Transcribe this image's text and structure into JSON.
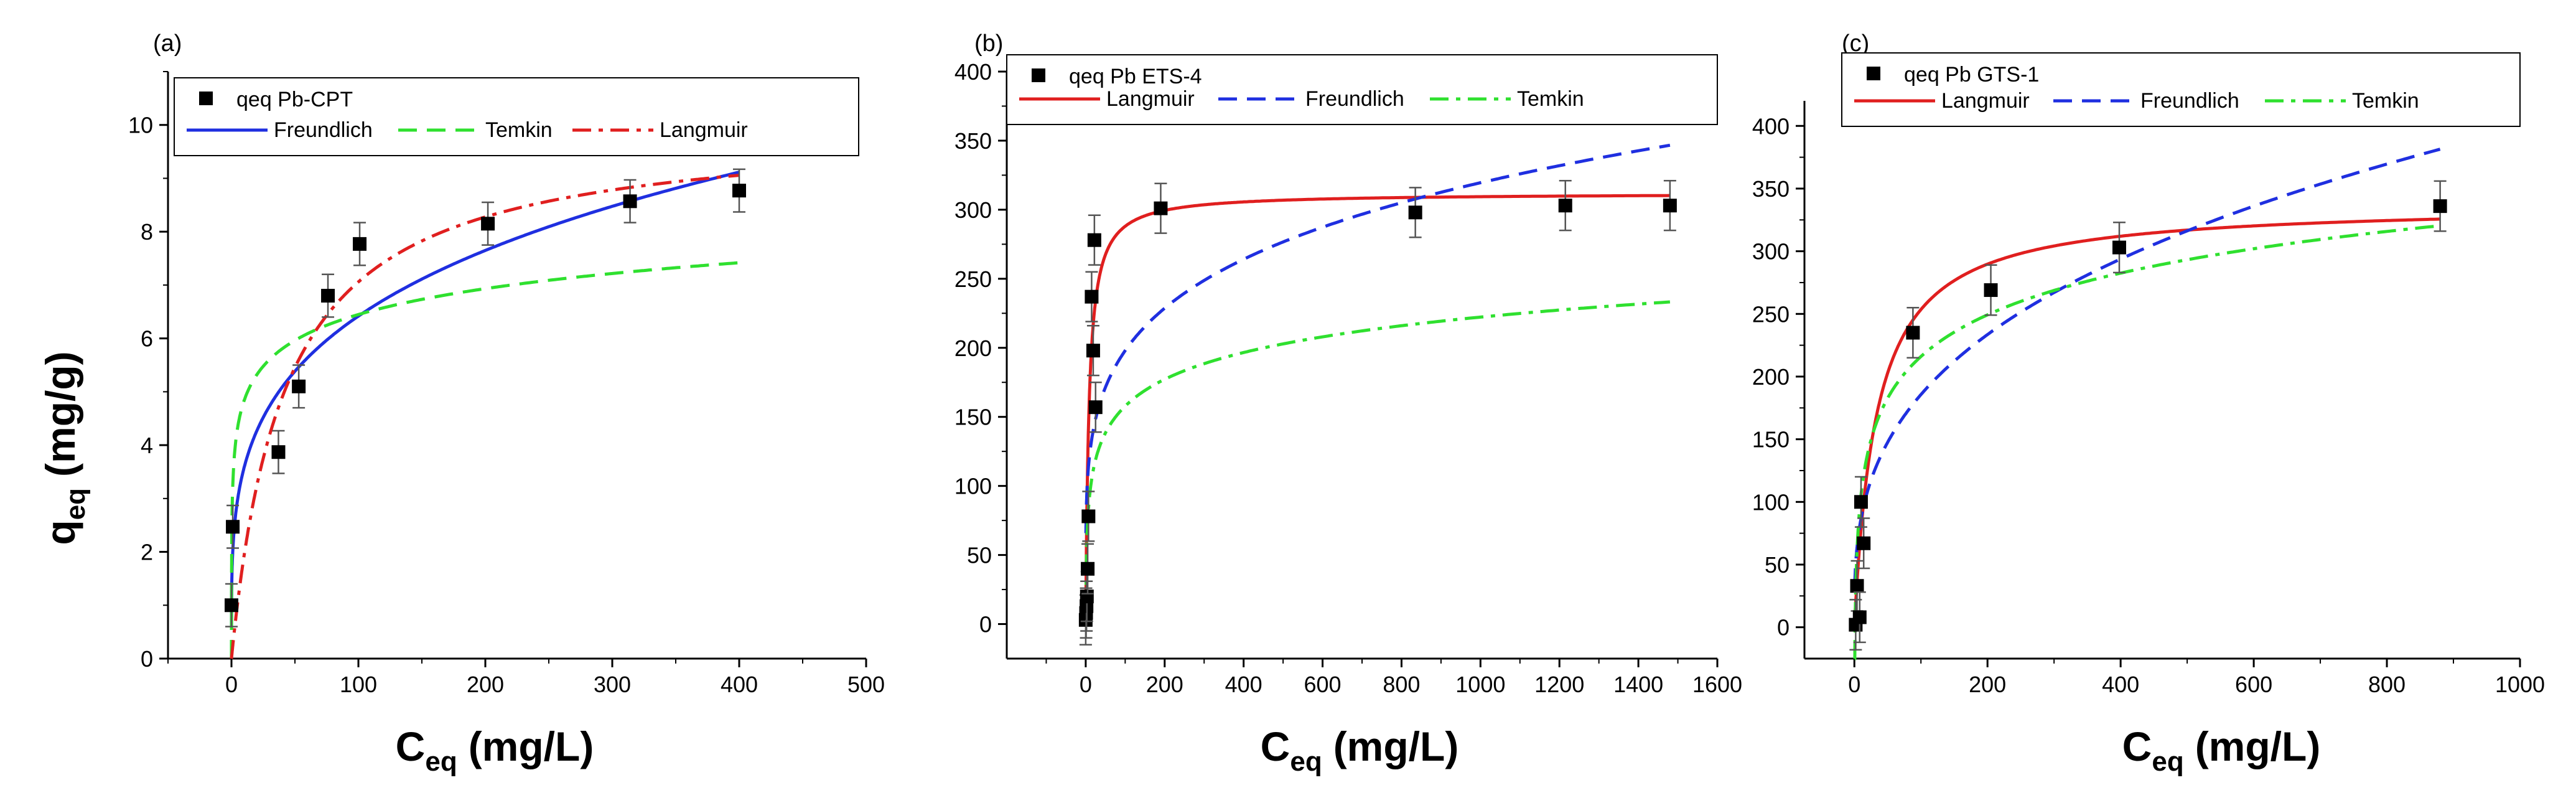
{
  "figure": {
    "shared_x_title": "C",
    "shared_x_sub": "eq",
    "shared_x_unit": "(mg/L)",
    "y_title": "q",
    "y_sub": "eq",
    "y_unit": "(mg/g)"
  },
  "colors": {
    "points": "#000000",
    "freundlich": "#1f2fe0",
    "temkin": "#2fe02f",
    "langmuir": "#e01f1f",
    "errorbar": "#555555"
  },
  "chart_data": [
    {
      "id": "a",
      "panel_label": "(a)",
      "type": "scatter",
      "xlim": [
        -50,
        500
      ],
      "ylim": [
        0,
        11
      ],
      "xticks": [
        0,
        100,
        200,
        300,
        400,
        500
      ],
      "yticks": [
        0,
        2,
        4,
        6,
        8,
        10
      ],
      "xlabel": "Ceq (mg/L)",
      "ylabel": "qeq (mg/g)",
      "points_label": "qeq Pb-CPT",
      "points": [
        {
          "x": 0,
          "y": 1.0,
          "err": 0.4
        },
        {
          "x": 1,
          "y": 2.47,
          "err": 0.4
        },
        {
          "x": 37,
          "y": 3.87,
          "err": 0.4
        },
        {
          "x": 53,
          "y": 5.1,
          "err": 0.4
        },
        {
          "x": 76,
          "y": 6.8,
          "err": 0.4
        },
        {
          "x": 101,
          "y": 7.77,
          "err": 0.4
        },
        {
          "x": 202,
          "y": 8.15,
          "err": 0.4
        },
        {
          "x": 314,
          "y": 8.57,
          "err": 0.4
        },
        {
          "x": 400,
          "y": 8.77,
          "err": 0.4
        }
      ],
      "series": [
        {
          "name": "Freundlich",
          "model": "freundlich",
          "params": {
            "kf": 2.0,
            "n": 3.95
          },
          "color": "#1f2fe0",
          "dash": "solid",
          "xmin": 0.01,
          "xmax": 400
        },
        {
          "name": "Temkin",
          "model": "temkin",
          "params": {
            "b": 0.7,
            "kt": 100
          },
          "color": "#2fe02f",
          "dash": "dash",
          "xmin": 0.01,
          "xmax": 400
        },
        {
          "name": "Langmuir",
          "model": "langmuir",
          "params": {
            "qm": 10.0,
            "kl": 0.024
          },
          "color": "#e01f1f",
          "dash": "dashdot",
          "xmin": 0,
          "xmax": 400
        }
      ],
      "legend_rows": [
        [
          "Freundlich",
          "Temkin",
          "Langmuir"
        ]
      ]
    },
    {
      "id": "b",
      "panel_label": "(b)",
      "type": "scatter",
      "xlim": [
        -200,
        1600
      ],
      "ylim": [
        -25,
        400
      ],
      "xticks": [
        0,
        200,
        400,
        600,
        800,
        1000,
        1200,
        1400,
        1600
      ],
      "yticks": [
        0,
        50,
        100,
        150,
        200,
        250,
        300,
        350,
        400
      ],
      "xlabel": "Ceq (mg/L)",
      "ylabel": "qeq (mg/g)",
      "points_label": "qeq Pb ETS-4",
      "points": [
        {
          "x": 0,
          "y": 3,
          "err": 18
        },
        {
          "x": 1,
          "y": 8,
          "err": 18
        },
        {
          "x": 2,
          "y": 13,
          "err": 18
        },
        {
          "x": 3,
          "y": 20,
          "err": 18
        },
        {
          "x": 5,
          "y": 40,
          "err": 18
        },
        {
          "x": 7,
          "y": 78,
          "err": 18
        },
        {
          "x": 15,
          "y": 237,
          "err": 18
        },
        {
          "x": 19,
          "y": 198,
          "err": 18
        },
        {
          "x": 22,
          "y": 278,
          "err": 18
        },
        {
          "x": 25,
          "y": 157,
          "err": 18
        },
        {
          "x": 190,
          "y": 301,
          "err": 18
        },
        {
          "x": 835,
          "y": 298,
          "err": 18
        },
        {
          "x": 1215,
          "y": 303,
          "err": 18
        },
        {
          "x": 1480,
          "y": 303,
          "err": 18
        }
      ],
      "series": [
        {
          "name": "Langmuir",
          "model": "langmuir",
          "params": {
            "qm": 312,
            "kl": 0.12
          },
          "color": "#e01f1f",
          "dash": "solid",
          "xmin": 0,
          "xmax": 1480
        },
        {
          "name": "Freundlich",
          "model": "freundlich",
          "params": {
            "kf": 76,
            "n": 4.81
          },
          "color": "#1f2fe0",
          "dash": "dash",
          "xmin": 0.5,
          "xmax": 1480
        },
        {
          "name": "Temkin",
          "model": "temkin",
          "params": {
            "b": 28,
            "kt": 2.8
          },
          "color": "#2fe02f",
          "dash": "dashdot",
          "xmin": 0.5,
          "xmax": 1480
        }
      ],
      "legend_rows": [
        [
          "Langmuir",
          "Freundlich",
          "Temkin"
        ]
      ]
    },
    {
      "id": "c",
      "panel_label": "(c)",
      "type": "scatter",
      "xlim": [
        -75,
        1000
      ],
      "ylim": [
        -25,
        420
      ],
      "xticks": [
        0,
        200,
        400,
        600,
        800,
        1000
      ],
      "yticks": [
        0,
        50,
        100,
        150,
        200,
        250,
        300,
        350,
        400
      ],
      "xlabel": "Ceq (mg/L)",
      "ylabel": "qeq (mg/g)",
      "points_label": "qeq Pb GTS-1",
      "points": [
        {
          "x": 2,
          "y": 2,
          "err": 20
        },
        {
          "x": 4,
          "y": 33,
          "err": 20
        },
        {
          "x": 8,
          "y": 8,
          "err": 20
        },
        {
          "x": 10,
          "y": 100,
          "err": 20
        },
        {
          "x": 14,
          "y": 67,
          "err": 20
        },
        {
          "x": 88,
          "y": 235,
          "err": 20
        },
        {
          "x": 205,
          "y": 269,
          "err": 20
        },
        {
          "x": 398,
          "y": 303,
          "err": 20
        },
        {
          "x": 880,
          "y": 336,
          "err": 20
        }
      ],
      "series": [
        {
          "name": "Langmuir",
          "model": "langmuir",
          "params": {
            "qm": 338,
            "kl": 0.03
          },
          "color": "#e01f1f",
          "dash": "solid",
          "xmin": 0,
          "xmax": 880
        },
        {
          "name": "Freundlich",
          "model": "freundlich",
          "params": {
            "kf": 40.4,
            "n": 3.02
          },
          "color": "#1f2fe0",
          "dash": "dash",
          "xmin": 0.5,
          "xmax": 880
        },
        {
          "name": "Temkin",
          "model": "temkin",
          "params": {
            "b": 48,
            "kt": 0.9
          },
          "color": "#2fe02f",
          "dash": "dashdot",
          "xmin": 0.5,
          "xmax": 880
        }
      ],
      "legend_rows": [
        [
          "Langmuir",
          "Freundlich",
          "Temkin"
        ]
      ]
    }
  ]
}
